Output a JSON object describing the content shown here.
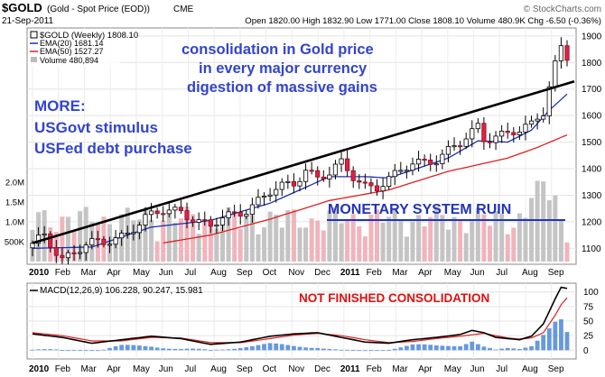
{
  "header": {
    "symbol": "$GOLD",
    "name": "(Gold - Spot Price (EOD))",
    "exchange": "CME",
    "date": "21-Sep-2011",
    "quote": "Open 1820.00  High 1832.90  Low 1771.00  Close 1808.10  Volume 480.9K  Chg -6.50 (-0.36%)",
    "brand": "© StockCharts.com"
  },
  "legend": {
    "price": "$GOLD (Weekly) 1808.10",
    "ema20": "EMA(20) 1681.14",
    "ema50": "EMA(50) 1527.27",
    "volume": "Volume 480,894"
  },
  "annotations": {
    "headline": [
      "consolidation in Gold price",
      "in every major currency",
      "digestion of massive gains"
    ],
    "more": [
      "MORE:",
      "USGovt stimulus",
      "USFed debt purchase"
    ],
    "ruin": "MONETARY SYSTEM RUIN",
    "macd_note": "NOT FINISHED CONSOLIDATION"
  },
  "colors": {
    "ema20": "#1f2fb0",
    "ema50": "#e02020",
    "headline_text": "#3344cc",
    "ruin_text": "#2233bb",
    "macd_note_text": "#e01010",
    "up_candle": "#ffffff",
    "down_candle": "#dd2244",
    "volume_up": "#c4c4c4",
    "volume_down": "#f0b4bc",
    "histogram": "#6699dd",
    "trendline": "#000000"
  },
  "chart_data": [
    {
      "type": "candlestick",
      "title": "$GOLD (Weekly) 1808.10",
      "x_tick_labels": [
        "2010",
        "Feb",
        "Mar",
        "Apr",
        "May",
        "Jun",
        "Jul",
        "Aug",
        "Sep",
        "Oct",
        "Nov",
        "Dec",
        "2011",
        "Feb",
        "Mar",
        "Apr",
        "May",
        "Jun",
        "Jul",
        "Aug",
        "Sep"
      ],
      "y_tick_labels": [
        "1100",
        "1200",
        "1300",
        "1400",
        "1500",
        "1600",
        "1700",
        "1800",
        "1900"
      ],
      "ylim": [
        1040,
        1930
      ],
      "volume_tick_labels": [
        "500K",
        "1.0M",
        "1.5M",
        "2.0M"
      ],
      "volume_range": [
        0,
        2500000
      ],
      "weeks": 91,
      "close_anchors": [
        [
          0,
          1110
        ],
        [
          2,
          1145
        ],
        [
          5,
          1065
        ],
        [
          9,
          1110
        ],
        [
          12,
          1120
        ],
        [
          15,
          1150
        ],
        [
          19,
          1210
        ],
        [
          22,
          1240
        ],
        [
          25,
          1245
        ],
        [
          28,
          1200
        ],
        [
          30,
          1180
        ],
        [
          32,
          1210
        ],
        [
          36,
          1250
        ],
        [
          40,
          1310
        ],
        [
          44,
          1345
        ],
        [
          46,
          1400
        ],
        [
          48,
          1370
        ],
        [
          50,
          1380
        ],
        [
          52,
          1415
        ],
        [
          54,
          1370
        ],
        [
          56,
          1340
        ],
        [
          58,
          1335
        ],
        [
          61,
          1370
        ],
        [
          64,
          1420
        ],
        [
          68,
          1440
        ],
        [
          72,
          1490
        ],
        [
          74,
          1535
        ],
        [
          75,
          1560
        ],
        [
          76,
          1515
        ],
        [
          78,
          1530
        ],
        [
          80,
          1530
        ],
        [
          82,
          1540
        ],
        [
          84,
          1560
        ],
        [
          85,
          1590
        ],
        [
          86,
          1620
        ],
        [
          87,
          1720
        ],
        [
          88,
          1800
        ],
        [
          89,
          1860
        ],
        [
          90,
          1808.1
        ]
      ],
      "ema20_anchors": [
        [
          0,
          1100
        ],
        [
          10,
          1105
        ],
        [
          20,
          1180
        ],
        [
          30,
          1205
        ],
        [
          40,
          1270
        ],
        [
          50,
          1370
        ],
        [
          56,
          1370
        ],
        [
          60,
          1365
        ],
        [
          70,
          1440
        ],
        [
          75,
          1505
        ],
        [
          80,
          1500
        ],
        [
          84,
          1545
        ],
        [
          87,
          1620
        ],
        [
          90,
          1681.14
        ]
      ],
      "ema50_anchors": [
        [
          22,
          1120
        ],
        [
          30,
          1150
        ],
        [
          40,
          1210
        ],
        [
          50,
          1280
        ],
        [
          60,
          1320
        ],
        [
          70,
          1390
        ],
        [
          80,
          1440
        ],
        [
          85,
          1480
        ],
        [
          90,
          1527.27
        ]
      ],
      "trendline": [
        [
          0,
          1120
        ],
        [
          90,
          1715
        ]
      ],
      "series": [
        {
          "name": "EMA(20)",
          "last": 1681.14
        },
        {
          "name": "EMA(50)",
          "last": 1527.27
        },
        {
          "name": "Volume",
          "last": 480894
        }
      ]
    },
    {
      "type": "line",
      "title": "MACD(12,26,9) 106.228, 90.247, 15.981",
      "y_tick_labels": [
        "0",
        "25",
        "50",
        "75",
        "100"
      ],
      "ylim": [
        -15,
        115
      ],
      "series": [
        {
          "name": "MACD(12,26,9)",
          "last": 106.228,
          "anchors": [
            [
              0,
              28
            ],
            [
              5,
              22
            ],
            [
              10,
              12
            ],
            [
              15,
              18
            ],
            [
              20,
              24
            ],
            [
              25,
              20
            ],
            [
              30,
              10
            ],
            [
              35,
              14
            ],
            [
              40,
              24
            ],
            [
              44,
              28
            ],
            [
              48,
              30
            ],
            [
              52,
              22
            ],
            [
              56,
              14
            ],
            [
              60,
              12
            ],
            [
              64,
              18
            ],
            [
              68,
              22
            ],
            [
              72,
              27
            ],
            [
              74,
              34
            ],
            [
              76,
              30
            ],
            [
              78,
              22
            ],
            [
              80,
              20
            ],
            [
              82,
              18
            ],
            [
              84,
              24
            ],
            [
              86,
              45
            ],
            [
              88,
              88
            ],
            [
              89,
              108
            ],
            [
              90,
              106
            ]
          ]
        },
        {
          "name": "signal",
          "last": 90.247,
          "anchors": [
            [
              0,
              30
            ],
            [
              5,
              25
            ],
            [
              10,
              16
            ],
            [
              15,
              16
            ],
            [
              20,
              22
            ],
            [
              25,
              21
            ],
            [
              30,
              13
            ],
            [
              35,
              13
            ],
            [
              40,
              20
            ],
            [
              44,
              26
            ],
            [
              48,
              29
            ],
            [
              52,
              25
            ],
            [
              56,
              18
            ],
            [
              60,
              13
            ],
            [
              64,
              15
            ],
            [
              68,
              20
            ],
            [
              72,
              24
            ],
            [
              76,
              29
            ],
            [
              78,
              25
            ],
            [
              80,
              21
            ],
            [
              82,
              19
            ],
            [
              84,
              21
            ],
            [
              86,
              30
            ],
            [
              88,
              60
            ],
            [
              89,
              78
            ],
            [
              90,
              90
            ]
          ]
        },
        {
          "name": "histogram",
          "last": 15.981
        }
      ]
    }
  ]
}
